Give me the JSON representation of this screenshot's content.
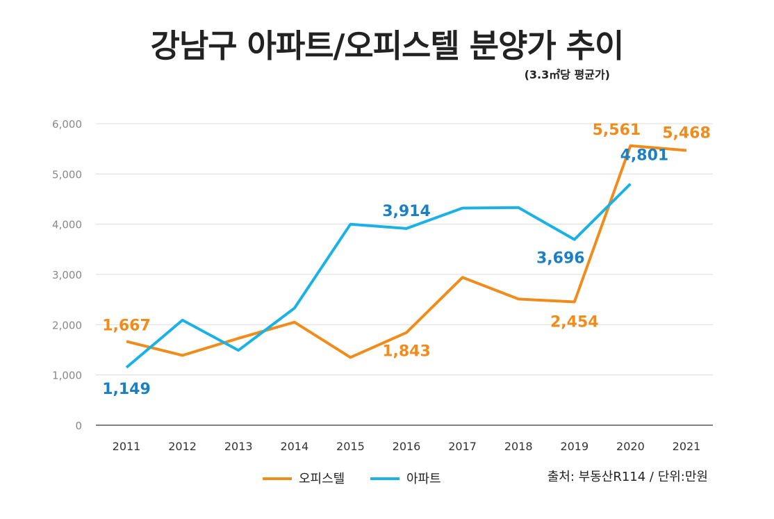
{
  "title": "강남구 아파트/오피스텔 분양가 추이",
  "subtitle": "(3.3㎡당 평균가)",
  "source": "출처: 부동산R114 / 단위:만원",
  "chart_data": {
    "type": "line",
    "title": "강남구 아파트/오피스텔 분양가 추이",
    "subtitle": "(3.3㎡당 평균가)",
    "x": [
      "2011",
      "2012",
      "2013",
      "2014",
      "2015",
      "2016",
      "2017",
      "2018",
      "2019",
      "2020",
      "2021"
    ],
    "ylim": [
      0,
      6000
    ],
    "yticks": [
      "0",
      "1,000",
      "2,000",
      "3,000",
      "4,000",
      "5,000",
      "6,000"
    ],
    "grid": true,
    "legend_position": "bottom",
    "series": [
      {
        "name": "오피스텔",
        "color": "#f08c1b",
        "values": [
          1667,
          1390,
          1730,
          2050,
          1350,
          1843,
          2940,
          2510,
          2454,
          5561,
          5468
        ],
        "labels": [
          {
            "index": 0,
            "text": "1,667"
          },
          {
            "index": 5,
            "text": "1,843"
          },
          {
            "index": 8,
            "text": "2,454"
          },
          {
            "index": 9,
            "text": "5,561"
          },
          {
            "index": 10,
            "text": "5,468"
          }
        ]
      },
      {
        "name": "아파트",
        "color": "#1ab2e6",
        "values": [
          1149,
          2090,
          1490,
          2330,
          4000,
          3914,
          4320,
          4330,
          3696,
          4801,
          null
        ],
        "labels": [
          {
            "index": 0,
            "text": "1,149"
          },
          {
            "index": 5,
            "text": "3,914"
          },
          {
            "index": 8,
            "text": "3,696"
          },
          {
            "index": 9,
            "text": "4,801"
          }
        ]
      }
    ],
    "label_colors": {
      "오피스텔": "#f08c1b",
      "아파트": "#1b7fc4"
    }
  }
}
